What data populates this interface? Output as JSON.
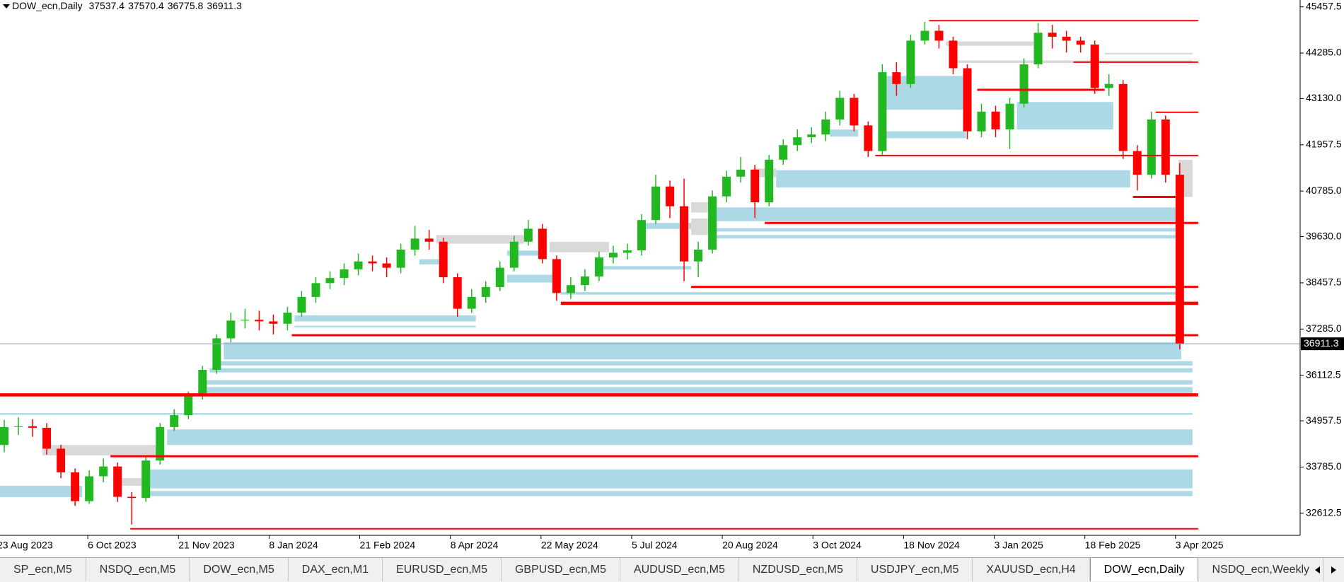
{
  "chart_data": {
    "type": "candlestick",
    "title": "DOW_ecn,Daily",
    "last_bar": {
      "open": 37537.4,
      "high": 37570.4,
      "low": 36775.8,
      "close": 36911.3
    },
    "last_price": 36911.3,
    "up_color": "#22b822",
    "down_color": "#ff0000",
    "price_line_color": "#8fa3b8",
    "xlim": [
      1,
      460
    ],
    "ylim": [
      32053,
      45631
    ],
    "xticks": [
      {
        "value": 0,
        "label": "23 Aug 2023"
      },
      {
        "value": 32,
        "label": "6 Oct 2023"
      },
      {
        "value": 64,
        "label": "21 Nov 2023"
      },
      {
        "value": 96,
        "label": "8 Jan 2024"
      },
      {
        "value": 128,
        "label": "21 Feb 2024"
      },
      {
        "value": 160,
        "label": "8 Apr 2024"
      },
      {
        "value": 192,
        "label": "22 May 2024"
      },
      {
        "value": 224,
        "label": "5 Jul 2024"
      },
      {
        "value": 256,
        "label": "20 Aug 2024"
      },
      {
        "value": 288,
        "label": "3 Oct 2024"
      },
      {
        "value": 320,
        "label": "18 Nov 2024"
      },
      {
        "value": 352,
        "label": "3 Jan 2025"
      },
      {
        "value": 384,
        "label": "18 Feb 2025"
      },
      {
        "value": 416,
        "label": "3 Apr 2025"
      }
    ],
    "yticks": [
      45457.5,
      {
        "value": 44285.0,
        "label": "44285.0"
      },
      {
        "value": 43130.0,
        "label": "43130.0"
      },
      41957.5,
      {
        "value": 40785.0,
        "label": "40785.0"
      },
      {
        "value": 39630.0,
        "label": "39630.0"
      },
      38457.5,
      {
        "value": 37285.0,
        "label": "37285.0"
      },
      36112.5,
      34957.5,
      {
        "value": 33785.0,
        "label": "33785.0"
      },
      32612.5
    ],
    "x": [
      2.5,
      7.5,
      12.5,
      17.5,
      22.5,
      27.5,
      32.5,
      37.5,
      42.5,
      47.5,
      52.5,
      57.5,
      62.5,
      67.5,
      72.5,
      77.5,
      82.5,
      87.5,
      92.5,
      97.5,
      102.5,
      107.5,
      112.5,
      117.5,
      122.5,
      127.5,
      132.5,
      137.5,
      142.5,
      147.5,
      152.5,
      157.5,
      162.5,
      167.5,
      172.5,
      177.5,
      182.5,
      187.5,
      192.5,
      197.5,
      202.5,
      207.5,
      212.5,
      217.5,
      222.5,
      227.5,
      232.5,
      237.5,
      242.5,
      247.5,
      252.5,
      257.5,
      262.5,
      267.5,
      272.5,
      277.5,
      282.5,
      287.5,
      292.5,
      297.5,
      302.5,
      307.5,
      312.5,
      317.5,
      322.5,
      327.5,
      332.5,
      337.5,
      342.5,
      347.5,
      352.5,
      357.5,
      362.5,
      367.5,
      372.5,
      377.5,
      382.5,
      387.5,
      392.5,
      397.5,
      402.5,
      407.5,
      412.5,
      417.5
    ],
    "open": [
      34344,
      34800,
      34820,
      34780,
      34250,
      33650,
      32920,
      33550,
      33800,
      33030,
      33000,
      33950,
      34800,
      35100,
      35600,
      36250,
      37050,
      37500,
      37520,
      37480,
      37420,
      37700,
      38100,
      38450,
      38580,
      38800,
      39000,
      38950,
      38840,
      39300,
      39580,
      39500,
      38600,
      37800,
      38100,
      38350,
      38840,
      39500,
      39830,
      39060,
      38200,
      38400,
      38620,
      39100,
      39220,
      39280,
      40050,
      40900,
      40400,
      39000,
      39300,
      40650,
      41150,
      41330,
      40500,
      41580,
      41950,
      42150,
      42220,
      42600,
      43150,
      42450,
      41800,
      43800,
      43500,
      44600,
      44850,
      44600,
      43900,
      42300,
      42800,
      42350,
      43000,
      44000,
      44800,
      44700,
      44600,
      44500,
      43400,
      43500,
      41800,
      41200,
      42600,
      41200
    ],
    "high": [
      34980,
      35050,
      35000,
      34900,
      34350,
      33750,
      33700,
      34000,
      33900,
      33150,
      34050,
      34900,
      35250,
      35700,
      36350,
      37150,
      37700,
      37800,
      37750,
      37650,
      37850,
      38250,
      38600,
      38750,
      38950,
      39200,
      39150,
      39100,
      39450,
      39900,
      39800,
      39600,
      38700,
      38300,
      38500,
      39000,
      39650,
      40050,
      39950,
      39150,
      38600,
      38800,
      39250,
      39400,
      39450,
      40200,
      41200,
      41050,
      41100,
      39500,
      40800,
      41300,
      41650,
      41450,
      41700,
      42100,
      42350,
      42400,
      42800,
      43330,
      43250,
      42550,
      44000,
      44050,
      44750,
      45073,
      45000,
      44700,
      44000,
      43000,
      42950,
      43150,
      44150,
      45050,
      45000,
      44850,
      44700,
      44600,
      43750,
      43600,
      41950,
      42800,
      42700,
      41500
    ],
    "low": [
      34160,
      34600,
      34550,
      34100,
      33500,
      32800,
      32850,
      33400,
      32900,
      32327,
      32900,
      33850,
      34700,
      35000,
      35500,
      36150,
      36950,
      37300,
      37250,
      37150,
      37250,
      37600,
      37950,
      38300,
      38400,
      38650,
      38750,
      38600,
      38700,
      39150,
      39300,
      38450,
      37600,
      37700,
      37950,
      38250,
      38750,
      39400,
      38950,
      38000,
      38050,
      38250,
      38500,
      38950,
      39050,
      39150,
      39950,
      40100,
      38500,
      38600,
      39200,
      40500,
      41000,
      40100,
      40400,
      41450,
      41800,
      42000,
      42050,
      42450,
      42300,
      41650,
      41700,
      43200,
      43400,
      44500,
      44400,
      43750,
      42100,
      42150,
      42150,
      41850,
      42900,
      43900,
      44400,
      44300,
      44300,
      43250,
      43200,
      41600,
      40800,
      41100,
      41000,
      36775.8
    ],
    "close": [
      34800,
      34820,
      34780,
      34250,
      33650,
      32920,
      33550,
      33800,
      33030,
      33000,
      33950,
      34800,
      35100,
      35600,
      36250,
      37050,
      37500,
      37520,
      37480,
      37420,
      37700,
      38100,
      38450,
      38580,
      38800,
      39000,
      38950,
      38840,
      39300,
      39580,
      39500,
      38600,
      37800,
      38100,
      38350,
      38840,
      39500,
      39830,
      39060,
      38200,
      38400,
      38620,
      39100,
      39220,
      39280,
      40050,
      40900,
      40400,
      39000,
      39300,
      40650,
      41150,
      41330,
      40500,
      41580,
      41950,
      42150,
      42220,
      42600,
      43150,
      42450,
      41800,
      43800,
      43500,
      44600,
      44850,
      44600,
      43900,
      42300,
      42800,
      42350,
      43000,
      44000,
      44800,
      44700,
      44600,
      44500,
      43400,
      43500,
      41800,
      41200,
      42600,
      41200,
      36911.3
    ],
    "zones": [
      {
        "x": [
          80,
          418
        ],
        "y": [
          36514,
          36952
        ],
        "color": "#add8e6"
      },
      {
        "x": [
          77,
          422
        ],
        "y": [
          36360,
          36470
        ],
        "color": "#add8e6"
      },
      {
        "x": [
          75,
          422
        ],
        "y": [
          36185,
          36294
        ],
        "color": "#add8e6"
      },
      {
        "x": [
          73,
          422
        ],
        "y": [
          35878,
          35988
        ],
        "color": "#add8e6"
      },
      {
        "x": [
          71,
          422
        ],
        "y": [
          35659,
          35812
        ],
        "color": "#add8e6"
      },
      {
        "x": [
          1,
          422
        ],
        "y": [
          35111,
          35155
        ],
        "color": "#add8e6"
      },
      {
        "x": [
          60,
          422
        ],
        "y": [
          34344,
          34739
        ],
        "color": "#add8e6"
      },
      {
        "x": [
          53,
          422
        ],
        "y": [
          33243,
          33725
        ],
        "color": "#add8e6"
      },
      {
        "x": [
          51,
          422
        ],
        "y": [
          33046,
          33177
        ],
        "color": "#add8e6"
      },
      {
        "x": [
          1,
          30
        ],
        "y": [
          33023,
          33308
        ],
        "color": "#add8e6"
      },
      {
        "x": [
          105,
          169
        ],
        "y": [
          37478,
          37631
        ],
        "color": "#add8e6"
      },
      {
        "x": [
          105,
          169
        ],
        "y": [
          37330,
          37369
        ],
        "color": "#add8e6"
      },
      {
        "x": [
          180,
          196
        ],
        "y": [
          38465,
          38662
        ],
        "color": "#add8e6"
      },
      {
        "x": [
          199,
          418
        ],
        "y": [
          38158,
          38223
        ],
        "color": "#add8e6"
      },
      {
        "x": [
          180,
          193
        ],
        "y": [
          39145,
          39276
        ],
        "color": "#add8e6"
      },
      {
        "x": [
          149,
          158
        ],
        "y": [
          38925,
          39056
        ],
        "color": "#add8e6"
      },
      {
        "x": [
          213,
          245
        ],
        "y": [
          38794,
          38881
        ],
        "color": "#add8e6"
      },
      {
        "x": [
          229,
          245
        ],
        "y": [
          39824,
          39977
        ],
        "color": "#add8e6"
      },
      {
        "x": [
          254,
          416
        ],
        "y": [
          40020,
          40371
        ],
        "color": "#add8e6"
      },
      {
        "x": [
          252,
          416
        ],
        "y": [
          39757,
          39845
        ],
        "color": "#add8e6"
      },
      {
        "x": [
          252,
          416
        ],
        "y": [
          39582,
          39669
        ],
        "color": "#add8e6"
      },
      {
        "x": [
          275,
          400
        ],
        "y": [
          40876,
          41314
        ],
        "color": "#add8e6"
      },
      {
        "x": [
          313,
          341
        ],
        "y": [
          42849,
          43704
        ],
        "color": "#add8e6"
      },
      {
        "x": [
          360,
          394
        ],
        "y": [
          42345,
          43045
        ],
        "color": "#add8e6"
      },
      {
        "x": [
          313,
          342
        ],
        "y": [
          42125,
          42300
        ],
        "color": "#add8e6"
      },
      {
        "x": [
          294,
          304
        ],
        "y": [
          42169,
          42345
        ],
        "color": "#add8e6"
      },
      {
        "x": [
          16,
          57
        ],
        "y": [
          34081,
          34344
        ],
        "color": "#d9d9d9"
      },
      {
        "x": [
          43,
          52
        ],
        "y": [
          33308,
          33506
        ],
        "color": "#d9d9d9"
      },
      {
        "x": [
          155,
          186
        ],
        "y": [
          39450,
          39670
        ],
        "color": "#d9d9d9"
      },
      {
        "x": [
          195,
          216
        ],
        "y": [
          39232,
          39495
        ],
        "color": "#d9d9d9"
      },
      {
        "x": [
          245,
          254
        ],
        "y": [
          40240,
          40503
        ],
        "color": "#d9d9d9"
      },
      {
        "x": [
          245,
          252
        ],
        "y": [
          39670,
          40087
        ],
        "color": "#d9d9d9"
      },
      {
        "x": [
          267,
          275
        ],
        "y": [
          41138,
          41358
        ],
        "color": "#d9d9d9"
      },
      {
        "x": [
          417,
          422
        ],
        "y": [
          40635,
          41577
        ],
        "color": "#d9d9d9"
      },
      {
        "x": [
          335,
          366
        ],
        "y": [
          44470,
          44581
        ],
        "color": "#d9d9d9"
      },
      {
        "x": [
          337,
          422
        ],
        "y": [
          44033,
          44098
        ],
        "color": "#d9d9d9"
      },
      {
        "x": [
          391,
          422
        ],
        "y": [
          44250,
          44290
        ],
        "color": "#d9d9d9"
      }
    ],
    "lines": [
      {
        "x": [
          329,
          424
        ],
        "y": 45107,
        "weight": "medium",
        "color": "#ff0000"
      },
      {
        "x": [
          380,
          424
        ],
        "y": 44055,
        "weight": "medium",
        "color": "#ff0000"
      },
      {
        "x": [
          346,
          391
        ],
        "y": 43353,
        "weight": "thick",
        "color": "#ff0000"
      },
      {
        "x": [
          409,
          424
        ],
        "y": 42783,
        "weight": "medium",
        "color": "#ff0000"
      },
      {
        "x": [
          310,
          424
        ],
        "y": 41687,
        "weight": "medium",
        "color": "#ff0000"
      },
      {
        "x": [
          401,
          416
        ],
        "y": 40635,
        "weight": "thick",
        "color": "#ff0000"
      },
      {
        "x": [
          271,
          424
        ],
        "y": 39977,
        "weight": "thick",
        "color": "#ff0000"
      },
      {
        "x": [
          245,
          424
        ],
        "y": 38355,
        "weight": "thick",
        "color": "#ff0000"
      },
      {
        "x": [
          199,
          424
        ],
        "y": 37939,
        "weight": "heavy",
        "color": "#ff0000"
      },
      {
        "x": [
          104,
          424
        ],
        "y": 37128,
        "weight": "thick",
        "color": "#ff0000"
      },
      {
        "x": [
          1,
          424
        ],
        "y": 35615,
        "weight": "heavy",
        "color": "#ff0000"
      },
      {
        "x": [
          40,
          424
        ],
        "y": 34059,
        "weight": "thick",
        "color": "#ff0000"
      },
      {
        "x": [
          47,
          424
        ],
        "y": 32218,
        "weight": "medium",
        "color": "#ff0000"
      }
    ]
  },
  "tabs": {
    "items": [
      "SP_ecn,M5",
      "NSDQ_ecn,M5",
      "DOW_ecn,M5",
      "DAX_ecn,M1",
      "EURUSD_ecn,M5",
      "GBPUSD_ecn,M5",
      "AUDUSD_ecn,M5",
      "NZDUSD_ecn,M5",
      "USDJPY_ecn,M5",
      "XAUUSD_ecn,H4",
      "DOW_ecn,Daily",
      "NSDQ_ecn,Weekly"
    ],
    "active": 10
  }
}
